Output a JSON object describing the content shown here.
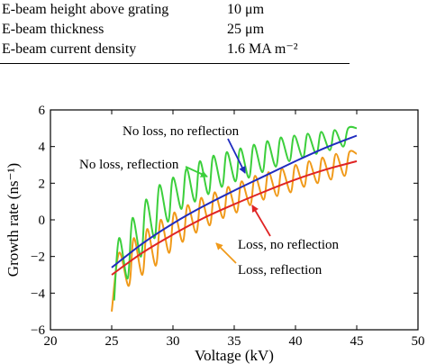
{
  "table": {
    "rows": [
      {
        "name": "E-beam height above grating",
        "value": "10 μm"
      },
      {
        "name": "E-beam thickness",
        "value": "25 μm"
      },
      {
        "name": "E-beam current density",
        "value": "1.6 MA m⁻²"
      }
    ]
  },
  "chart_data": {
    "type": "line",
    "xlabel": "Voltage (kV)",
    "ylabel": "Growth rate (ns⁻¹)",
    "xlim": [
      20,
      50
    ],
    "ylim": [
      -6,
      6
    ],
    "x_ticks": [
      "20",
      "25",
      "30",
      "35",
      "40",
      "45",
      "50"
    ],
    "y_ticks": [
      "−6",
      "−4",
      "−2",
      "0",
      "2",
      "4",
      "6"
    ],
    "grid": false,
    "series": [
      {
        "name": "No loss, no reflection",
        "color": "#1f2bbf",
        "oscillation": 0,
        "x": [
          25,
          27.5,
          30,
          32.5,
          35,
          37.5,
          40,
          42.5,
          45
        ],
        "y": [
          -2.6,
          -1.3,
          -0.2,
          0.75,
          1.6,
          2.4,
          3.2,
          3.95,
          4.6
        ]
      },
      {
        "name": "Loss, no reflection",
        "color": "#e02424",
        "oscillation": 0,
        "x": [
          25,
          27.5,
          30,
          32.5,
          35,
          37.5,
          40,
          42.5,
          45
        ],
        "y": [
          -3.0,
          -1.8,
          -0.8,
          0.1,
          0.85,
          1.55,
          2.2,
          2.75,
          3.2
        ]
      },
      {
        "name": "No loss, reflection",
        "color": "#3ccf3c",
        "oscillation": 1,
        "x": [
          25.2,
          25.6,
          26.3,
          26.7,
          27.4,
          27.8,
          28.5,
          28.9,
          29.6,
          30.0,
          30.7,
          31.1,
          31.8,
          32.2,
          32.9,
          33.3,
          34.0,
          34.4,
          35.1,
          35.5,
          36.2,
          36.6,
          37.3,
          37.7,
          38.4,
          38.8,
          39.5,
          39.9,
          40.6,
          41.0,
          41.7,
          42.1,
          42.8,
          43.2,
          43.9,
          44.3,
          45.0
        ],
        "y": [
          -4.4,
          -1.0,
          -3.2,
          0.1,
          -2.0,
          1.1,
          -1.0,
          1.9,
          -0.1,
          2.3,
          0.6,
          2.8,
          1.0,
          3.2,
          1.4,
          3.5,
          1.8,
          3.7,
          2.1,
          3.9,
          2.3,
          4.1,
          2.6,
          4.3,
          2.9,
          4.5,
          3.2,
          4.6,
          3.4,
          4.7,
          3.6,
          4.8,
          3.8,
          4.9,
          4.0,
          5.0,
          5.0
        ]
      },
      {
        "name": "Loss, reflection",
        "color": "#f09a1a",
        "oscillation": 1,
        "x": [
          25.0,
          25.6,
          26.4,
          26.8,
          27.5,
          27.9,
          28.6,
          29.0,
          29.7,
          30.1,
          30.8,
          31.2,
          31.9,
          32.3,
          33.0,
          33.4,
          34.1,
          34.5,
          35.2,
          35.6,
          36.3,
          36.7,
          37.4,
          37.8,
          38.5,
          38.9,
          39.6,
          40.0,
          40.7,
          41.1,
          41.8,
          42.2,
          42.9,
          43.3,
          44.0,
          44.4,
          45.0
        ],
        "y": [
          -5.0,
          -1.8,
          -3.6,
          -1.0,
          -3.0,
          -0.5,
          -2.5,
          0.0,
          -1.8,
          0.4,
          -1.2,
          0.8,
          -0.7,
          1.2,
          -0.3,
          1.5,
          0.1,
          1.8,
          0.4,
          2.1,
          0.8,
          2.4,
          1.1,
          2.6,
          1.3,
          2.8,
          1.5,
          3.0,
          1.8,
          3.2,
          2.0,
          3.4,
          2.2,
          3.6,
          2.4,
          3.7,
          3.6
        ]
      }
    ],
    "annotations": [
      {
        "text": "No loss, no reflection",
        "series": 0
      },
      {
        "text": "No loss, reflection",
        "series": 2
      },
      {
        "text": "Loss, no reflection",
        "series": 1
      },
      {
        "text": "Loss, reflection",
        "series": 3
      }
    ]
  }
}
